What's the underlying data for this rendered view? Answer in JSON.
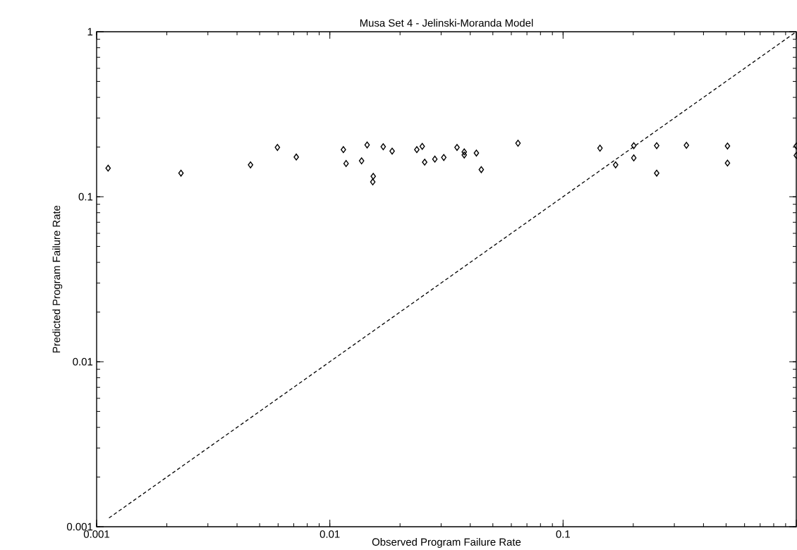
{
  "chart_data": {
    "type": "scatter",
    "title": "Musa Set 4 - Jelinski-Moranda Model",
    "xlabel": "Observed Program Failure Rate",
    "ylabel": "Predicted Program Failure Rate",
    "log": "xy",
    "xlim": [
      0.001,
      1
    ],
    "ylim": [
      0.001,
      1
    ],
    "xticks": [
      0.001,
      0.01,
      0.1,
      {
        "value": 1,
        "label": null
      }
    ],
    "yticks": [
      0.001,
      0.01,
      0.1,
      1
    ],
    "grid": false,
    "series": [
      {
        "marker": "diamond",
        "color": "#000000",
        "x": [
          0.00112,
          0.0023,
          0.00457,
          0.00596,
          0.00718,
          0.01143,
          0.01174,
          0.01368,
          0.01445,
          0.01535,
          0.01528,
          0.01694,
          0.0185,
          0.0236,
          0.0249,
          0.0255,
          0.0282,
          0.0308,
          0.0351,
          0.0377,
          0.0377,
          0.0425,
          0.0446,
          0.0641,
          0.144,
          0.168,
          0.201,
          0.201,
          0.252,
          0.252,
          0.338,
          0.507,
          0.507,
          1,
          1
        ],
        "values": [
          0.149,
          0.139,
          0.156,
          0.199,
          0.174,
          0.193,
          0.159,
          0.165,
          0.206,
          0.133,
          0.123,
          0.201,
          0.189,
          0.193,
          0.202,
          0.162,
          0.169,
          0.173,
          0.199,
          0.187,
          0.179,
          0.184,
          0.146,
          0.211,
          0.197,
          0.156,
          0.204,
          0.172,
          0.204,
          0.139,
          0.205,
          0.203,
          0.16,
          0.203,
          0.178
        ]
      },
      {
        "type": "line",
        "line_style": "dashed",
        "color": "#000000",
        "x": [
          0.00113,
          1
        ],
        "values": [
          0.00113,
          1
        ]
      }
    ]
  }
}
